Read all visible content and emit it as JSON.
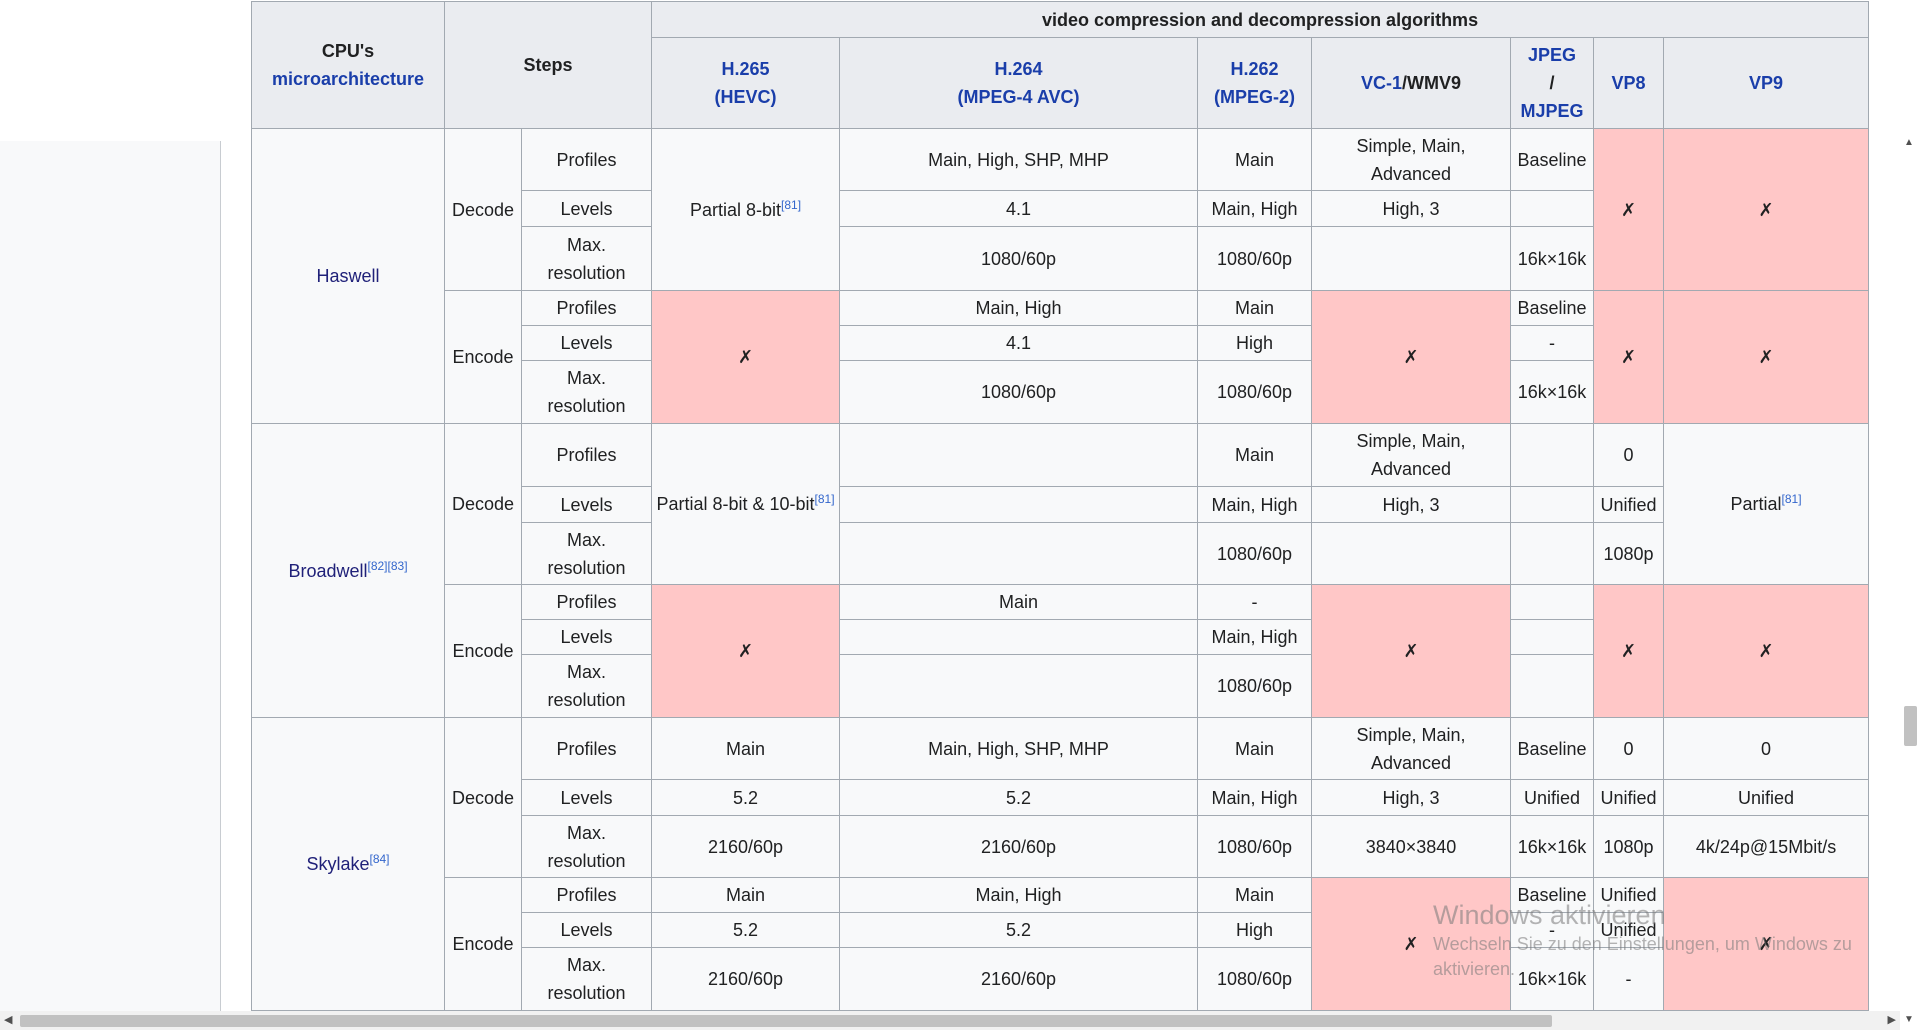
{
  "header": {
    "group_title": "video compression and decompression algorithms",
    "cpu_line1": "CPU's",
    "cpu_link": "microarchitecture",
    "steps": "Steps",
    "codecs": {
      "h265_a": "H.265",
      "h265_b": "(HEVC)",
      "h264_a": "H.264",
      "h264_b": "(MPEG-4 AVC)",
      "h262_a": "H.262",
      "h262_b": "(MPEG-2)",
      "vc1_link": "VC-1",
      "vc1_rest": "/WMV9",
      "jpeg_a": "JPEG",
      "jpeg_b": "/",
      "jpeg_c": "MJPEG",
      "vp8": "VP8",
      "vp9": "VP9"
    }
  },
  "labels": {
    "decode": "Decode",
    "encode": "Encode",
    "profiles": "Profiles",
    "levels": "Levels",
    "maxres_1": "Max.",
    "maxres_2": "resolution",
    "cross": "✗"
  },
  "haswell": {
    "name": "Haswell",
    "dec_h265": "Partial 8-bit",
    "dec_h265_ref": "[81]",
    "dec_h264_profiles": "Main, High, SHP, MHP",
    "dec_h264_levels": "4.1",
    "dec_h264_maxres": "1080/60p",
    "dec_h262_profiles": "Main",
    "dec_h262_levels": "Main, High",
    "dec_h262_maxres": "1080/60p",
    "dec_vc1_profiles": "Simple, Main, Advanced",
    "dec_vc1_levels": "High, 3",
    "dec_jpeg_profiles": "Baseline",
    "dec_jpeg_maxres": "16k×16k",
    "enc_h264_profiles": "Main, High",
    "enc_h264_levels": "4.1",
    "enc_h264_maxres": "1080/60p",
    "enc_h262_profiles": "Main",
    "enc_h262_levels": "High",
    "enc_h262_maxres": "1080/60p",
    "enc_jpeg_profiles": "Baseline",
    "enc_jpeg_levels": "-",
    "enc_jpeg_maxres": "16k×16k"
  },
  "broadwell": {
    "name": "Broadwell",
    "ref1": "[82]",
    "ref2": "[83]",
    "dec_h265": "Partial 8-bit & 10-bit",
    "dec_h265_ref": "[81]",
    "dec_h262_profiles": "Main",
    "dec_h262_levels": "Main, High",
    "dec_h262_maxres": "1080/60p",
    "dec_vc1_profiles": "Simple, Main, Advanced",
    "dec_vc1_levels": "High, 3",
    "dec_vp8_profiles": "0",
    "dec_vp8_levels": "Unified",
    "dec_vp8_maxres": "1080p",
    "dec_vp9": "Partial",
    "dec_vp9_ref": "[81]",
    "enc_h264_profiles": "Main",
    "enc_h262_profiles": "-",
    "enc_h262_levels": "Main, High",
    "enc_h262_maxres": "1080/60p"
  },
  "skylake": {
    "name": "Skylake",
    "ref": "[84]",
    "dec_h265_profiles": "Main",
    "dec_h265_levels": "5.2",
    "dec_h265_maxres": "2160/60p",
    "dec_h264_profiles": "Main, High, SHP, MHP",
    "dec_h264_levels": "5.2",
    "dec_h264_maxres": "2160/60p",
    "dec_h262_profiles": "Main",
    "dec_h262_levels": "Main, High",
    "dec_h262_maxres": "1080/60p",
    "dec_vc1_profiles": "Simple, Main, Advanced",
    "dec_vc1_levels": "High, 3",
    "dec_vc1_maxres": "3840×3840",
    "dec_jpeg_profiles": "Baseline",
    "dec_jpeg_levels": "Unified",
    "dec_jpeg_maxres": "16k×16k",
    "dec_vp8_profiles": "0",
    "dec_vp8_levels": "Unified",
    "dec_vp8_maxres": "1080p",
    "dec_vp9_profiles": "0",
    "dec_vp9_levels": "Unified",
    "dec_vp9_maxres": "4k/24p@15Mbit/s",
    "enc_h265_profiles": "Main",
    "enc_h265_levels": "5.2",
    "enc_h265_maxres": "2160/60p",
    "enc_h264_profiles": "Main, High",
    "enc_h264_levels": "5.2",
    "enc_h264_maxres": "2160/60p",
    "enc_h262_profiles": "Main",
    "enc_h262_levels": "High",
    "enc_h262_maxres": "1080/60p",
    "enc_jpeg_profiles": "Baseline",
    "enc_jpeg_levels": "-",
    "enc_jpeg_maxres": "16k×16k",
    "enc_vp8_profiles": "Unified",
    "enc_vp8_levels": "Unified",
    "enc_vp8_maxres": "-"
  },
  "watermark": {
    "title": "Windows aktivieren",
    "subtitle": "Wechseln Sie zu den Einstellungen, um Windows zu aktivieren."
  },
  "colors": {
    "unsupported_bg": "#ffc7c7",
    "header_bg": "#eaecf0",
    "link": "#1a3eaa"
  }
}
